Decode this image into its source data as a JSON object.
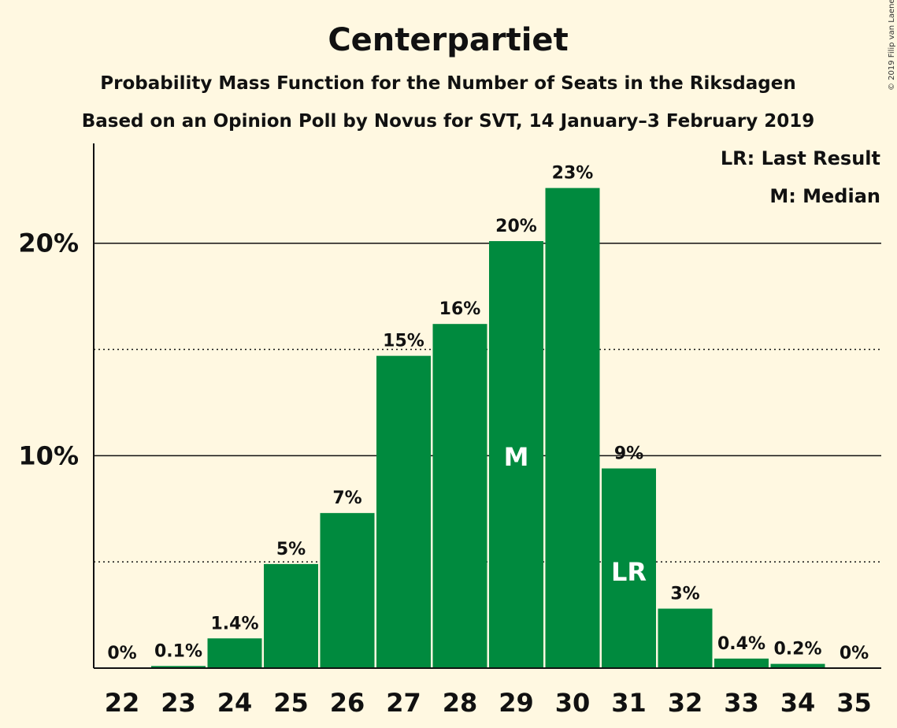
{
  "chart_data": {
    "type": "bar",
    "title": "Centerpartiet",
    "subtitle": "Probability Mass Function for the Number of Seats in the Riksdagen",
    "subtitle2": "Based on an Opinion Poll by Novus for SVT, 14 January–3 February 2019",
    "copyright": "© 2019 Filip van Laenen",
    "legend": {
      "placement": "top-right",
      "entries": [
        "LR: Last Result",
        "M: Median"
      ]
    },
    "categories": [
      "22",
      "23",
      "24",
      "25",
      "26",
      "27",
      "28",
      "29",
      "30",
      "31",
      "32",
      "33",
      "34",
      "35"
    ],
    "values": [
      0,
      0.1,
      1.4,
      4.9,
      7.3,
      14.7,
      16.2,
      20.1,
      22.6,
      9.4,
      2.8,
      0.45,
      0.2,
      0
    ],
    "data_labels": [
      "0%",
      "0.1%",
      "1.4%",
      "5%",
      "7%",
      "15%",
      "16%",
      "20%",
      "23%",
      "9%",
      "3%",
      "0.4%",
      "0.2%",
      "0%"
    ],
    "bar_markers": {
      "7": "M",
      "9": "LR"
    },
    "ylim": [
      0,
      24.7
    ],
    "yticks": [
      {
        "value": 10,
        "label": "10%"
      },
      {
        "value": 20,
        "label": "20%"
      }
    ],
    "minor_gridlines": [
      5,
      15
    ],
    "bar_color": "#008a3e",
    "background_color": "#fff8e1"
  }
}
